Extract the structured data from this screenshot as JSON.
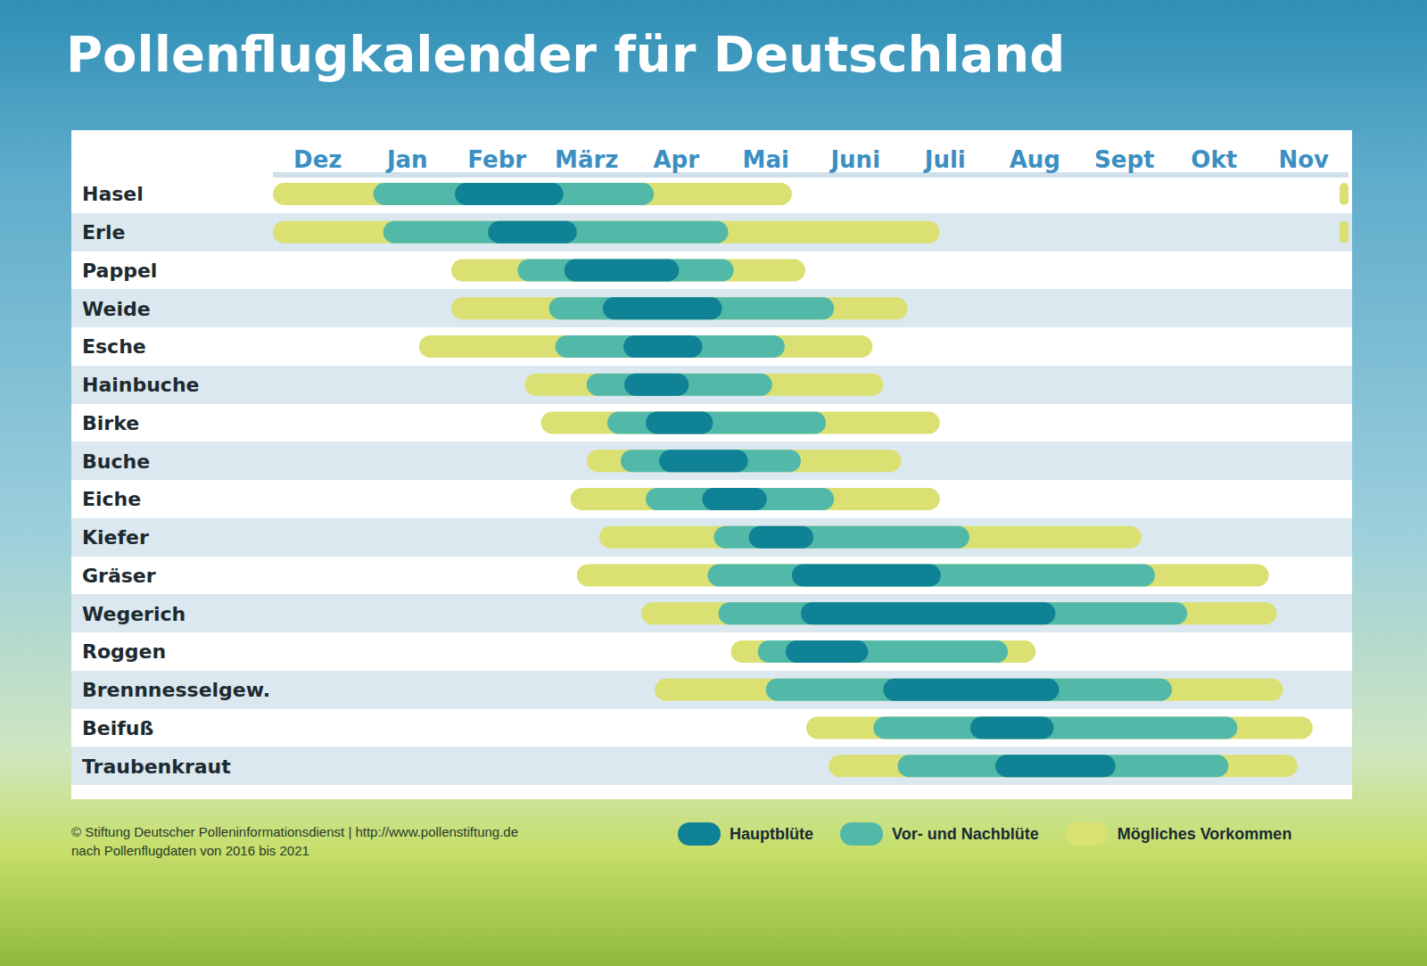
{
  "chart_data": {
    "type": "range_bar",
    "title": "Pollenflugkalender für Deutschland",
    "orientation": "horizontal",
    "legend": "bottom",
    "categories": [
      "Hasel",
      "Erle",
      "Pappel",
      "Weide",
      "Esche",
      "Hainbuche",
      "Birke",
      "Buche",
      "Eiche",
      "Kiefer",
      "Gräser",
      "Wegerich",
      "Roggen",
      "Brennnesselgew.",
      "Beifuß",
      "Traubenkraut"
    ],
    "xlim": [
      0,
      12
    ],
    "xticks": [
      {
        "value": 0.5,
        "label": "Dez"
      },
      {
        "value": 1.5,
        "label": "Jan"
      },
      {
        "value": 2.5,
        "label": "Febr"
      },
      {
        "value": 3.5,
        "label": "März"
      },
      {
        "value": 4.5,
        "label": "Apr"
      },
      {
        "value": 5.5,
        "label": "Mai"
      },
      {
        "value": 6.5,
        "label": "Juni"
      },
      {
        "value": 7.5,
        "label": "Juli"
      },
      {
        "value": 8.5,
        "label": "Aug"
      },
      {
        "value": 9.5,
        "label": "Sept"
      },
      {
        "value": 10.5,
        "label": "Okt"
      },
      {
        "value": 11.5,
        "label": "Nov"
      }
    ],
    "series": [
      {
        "name": "Hauptblüte",
        "color": "#0f8296",
        "values": [
          [
            [
              2.03,
              3.24
            ]
          ],
          [
            [
              2.4,
              3.39
            ]
          ],
          [
            [
              3.25,
              4.53
            ]
          ],
          [
            [
              3.68,
              5.01
            ]
          ],
          [
            [
              3.91,
              4.79
            ]
          ],
          [
            [
              3.92,
              4.64
            ]
          ],
          [
            [
              4.16,
              4.91
            ]
          ],
          [
            [
              4.31,
              5.3
            ]
          ],
          [
            [
              4.79,
              5.51
            ]
          ],
          [
            [
              5.31,
              6.03
            ]
          ],
          [
            [
              5.79,
              7.45
            ]
          ],
          [
            [
              5.89,
              8.73
            ]
          ],
          [
            [
              5.72,
              6.64
            ]
          ],
          [
            [
              6.81,
              8.77
            ]
          ],
          [
            [
              7.78,
              8.71
            ]
          ],
          [
            [
              8.06,
              9.4
            ]
          ]
        ]
      },
      {
        "name": "Vor- und Nachblüte",
        "color": "#52b9a9",
        "values": [
          [
            [
              1.12,
              4.25
            ]
          ],
          [
            [
              1.23,
              5.08
            ]
          ],
          [
            [
              2.73,
              5.14
            ]
          ],
          [
            [
              3.08,
              6.26
            ]
          ],
          [
            [
              3.15,
              5.71
            ]
          ],
          [
            [
              3.5,
              5.57
            ]
          ],
          [
            [
              3.73,
              6.17
            ]
          ],
          [
            [
              3.88,
              5.89
            ]
          ],
          [
            [
              4.16,
              6.26
            ]
          ],
          [
            [
              4.92,
              7.77
            ]
          ],
          [
            [
              4.85,
              9.84
            ]
          ],
          [
            [
              4.97,
              10.2
            ]
          ],
          [
            [
              5.41,
              8.2
            ]
          ],
          [
            [
              5.5,
              10.03
            ]
          ],
          [
            [
              6.7,
              10.76
            ]
          ],
          [
            [
              6.97,
              10.66
            ]
          ]
        ]
      },
      {
        "name": "Mögliches Vorkommen",
        "color": "#dbe072",
        "values": [
          [
            [
              0,
              5.79
            ],
            [
              11.9,
              12
            ]
          ],
          [
            [
              0,
              7.44
            ],
            [
              11.9,
              12
            ]
          ],
          [
            [
              1.99,
              5.94
            ]
          ],
          [
            [
              1.99,
              7.08
            ]
          ],
          [
            [
              1.63,
              6.69
            ]
          ],
          [
            [
              2.81,
              6.81
            ]
          ],
          [
            [
              2.99,
              7.44
            ]
          ],
          [
            [
              3.5,
              7.01
            ]
          ],
          [
            [
              3.32,
              7.44
            ]
          ],
          [
            [
              3.64,
              9.69
            ]
          ],
          [
            [
              3.39,
              11.11
            ]
          ],
          [
            [
              4.11,
              11.2
            ]
          ],
          [
            [
              5.11,
              8.51
            ]
          ],
          [
            [
              4.26,
              11.27
            ]
          ],
          [
            [
              5.95,
              11.6
            ]
          ],
          [
            [
              6.2,
              11.43
            ]
          ]
        ]
      }
    ],
    "annotations": [
      "© Stiftung Deutscher Polleninformationsdienst | http://www.pollenstiftung.de",
      "nach Pollenflugdaten von 2016 bis 2021"
    ]
  }
}
